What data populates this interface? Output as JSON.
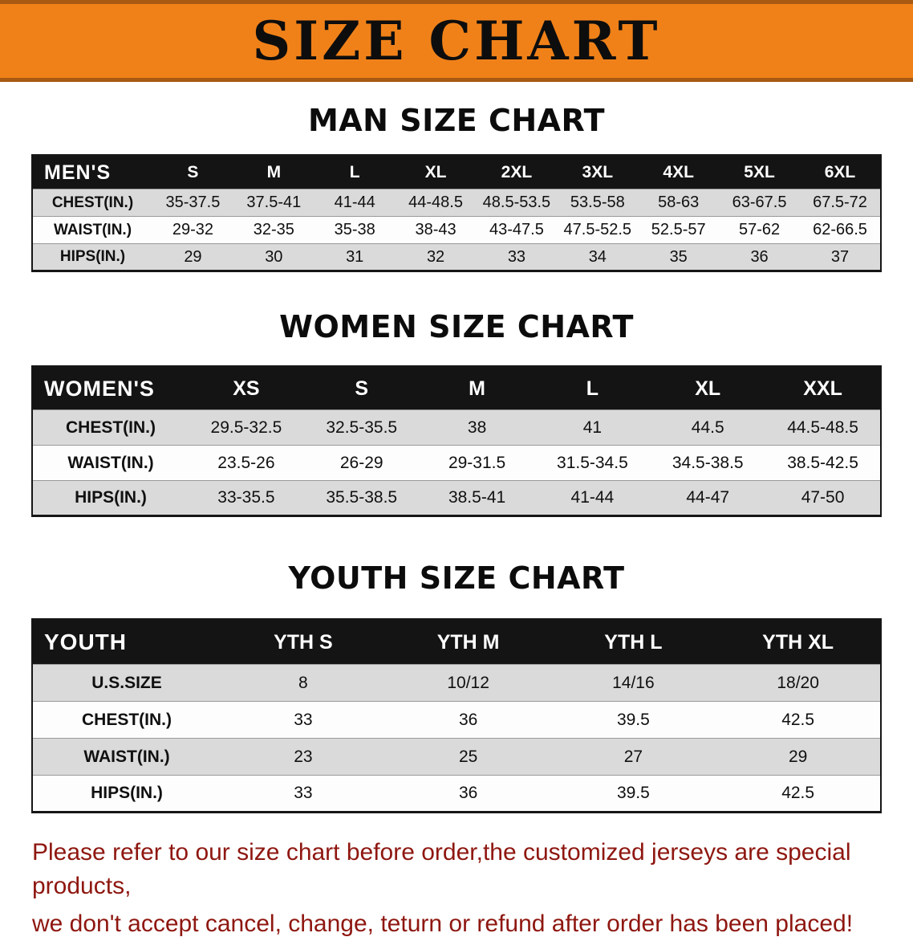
{
  "banner": {
    "title": "SIZE CHART"
  },
  "colors": {
    "banner_orange": "#f08119",
    "table_header_black": "#141414",
    "row_stripe_gray": "#dadada",
    "footer_text_red": "#8e1710"
  },
  "sections": [
    {
      "heading": "MAN SIZE CHART",
      "table": {
        "corner": "MEN'S",
        "columns": [
          "S",
          "M",
          "L",
          "XL",
          "2XL",
          "3XL",
          "4XL",
          "5XL",
          "6XL"
        ],
        "rows": [
          {
            "label": "CHEST(IN.)",
            "values": [
              "35-37.5",
              "37.5-41",
              "41-44",
              "44-48.5",
              "48.5-53.5",
              "53.5-58",
              "58-63",
              "63-67.5",
              "67.5-72"
            ]
          },
          {
            "label": "WAIST(IN.)",
            "values": [
              "29-32",
              "32-35",
              "35-38",
              "38-43",
              "43-47.5",
              "47.5-52.5",
              "52.5-57",
              "57-62",
              "62-66.5"
            ]
          },
          {
            "label": "HIPS(IN.)",
            "values": [
              "29",
              "30",
              "31",
              "32",
              "33",
              "34",
              "35",
              "36",
              "37"
            ]
          }
        ]
      }
    },
    {
      "heading": "WOMEN SIZE CHART",
      "table": {
        "corner": "WOMEN'S",
        "columns": [
          "XS",
          "S",
          "M",
          "L",
          "XL",
          "XXL"
        ],
        "rows": [
          {
            "label": "CHEST(IN.)",
            "values": [
              "29.5-32.5",
              "32.5-35.5",
              "38",
              "41",
              "44.5",
              "44.5-48.5"
            ]
          },
          {
            "label": "WAIST(IN.)",
            "values": [
              "23.5-26",
              "26-29",
              "29-31.5",
              "31.5-34.5",
              "34.5-38.5",
              "38.5-42.5"
            ]
          },
          {
            "label": "HIPS(IN.)",
            "values": [
              "33-35.5",
              "35.5-38.5",
              "38.5-41",
              "41-44",
              "44-47",
              "47-50"
            ]
          }
        ]
      }
    },
    {
      "heading": "YOUTH SIZE CHART",
      "table": {
        "corner": "YOUTH",
        "columns": [
          "YTH S",
          "YTH M",
          "YTH L",
          "YTH XL"
        ],
        "rows": [
          {
            "label": "U.S.SIZE",
            "values": [
              "8",
              "10/12",
              "14/16",
              "18/20"
            ]
          },
          {
            "label": "CHEST(IN.)",
            "values": [
              "33",
              "36",
              "39.5",
              "42.5"
            ]
          },
          {
            "label": "WAIST(IN.)",
            "values": [
              "23",
              "25",
              "27",
              "29"
            ]
          },
          {
            "label": "HIPS(IN.)",
            "values": [
              "33",
              "36",
              "39.5",
              "42.5"
            ]
          }
        ]
      }
    }
  ],
  "footer": {
    "line1": "Please refer to our size chart before order,the customized jerseys are special products,",
    "line2": "we don't accept cancel, change, teturn or refund after order has been placed!"
  }
}
